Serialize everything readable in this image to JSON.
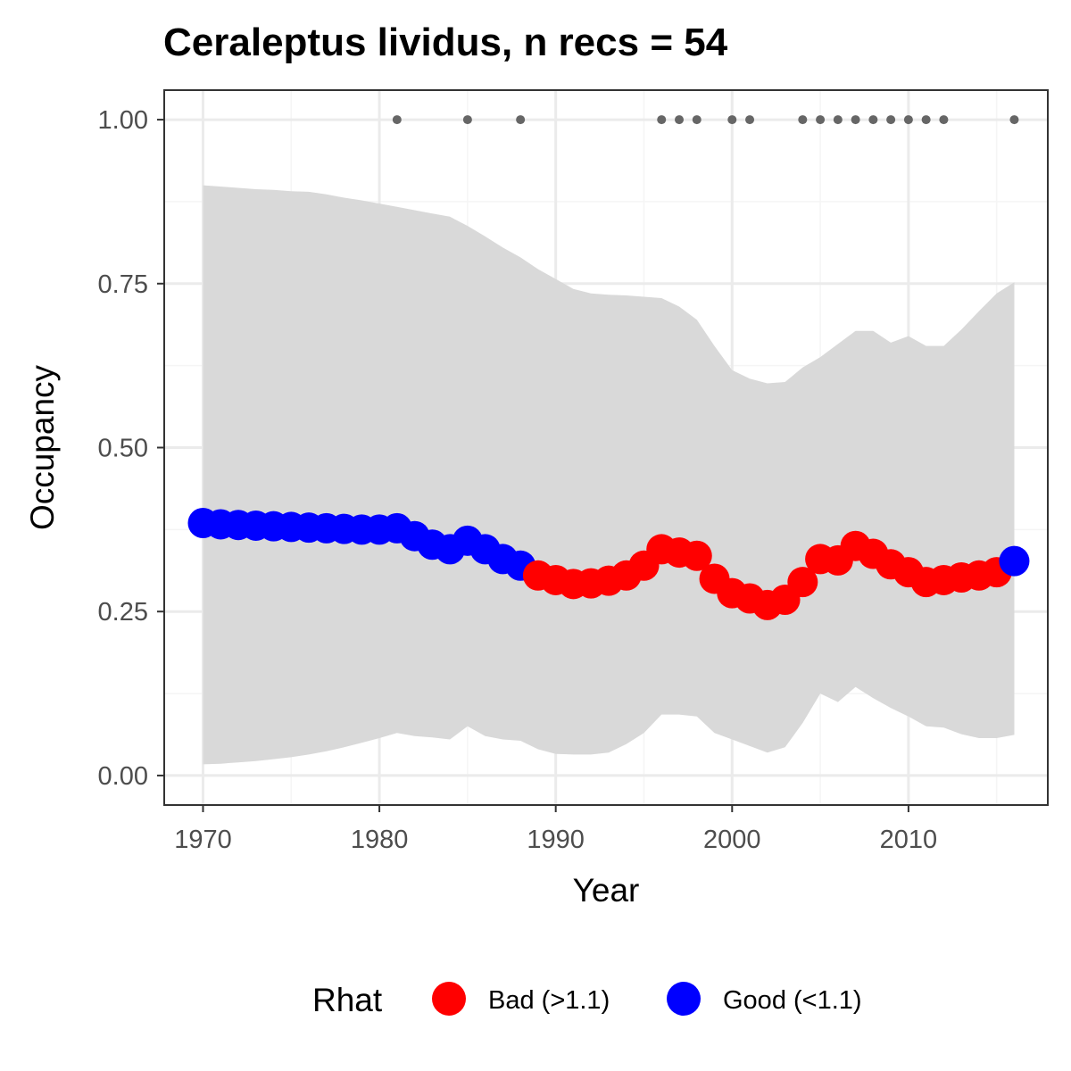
{
  "chart_data": {
    "type": "line",
    "title": "Ceraleptus lividus, n recs = 54",
    "xlabel": "Year",
    "ylabel": "Occupancy",
    "xlim": [
      1967.8,
      2017.9
    ],
    "ylim": [
      -0.045,
      1.045
    ],
    "x_ticks": [
      1970,
      1980,
      1990,
      2000,
      2010
    ],
    "x_tick_labels": [
      "1970",
      "1980",
      "1990",
      "2000",
      "2010"
    ],
    "y_ticks": [
      0,
      0.25,
      0.5,
      0.75,
      1.0
    ],
    "y_tick_labels": [
      "0.00",
      "0.25",
      "0.50",
      "0.75",
      "1.00"
    ],
    "grid": true,
    "years": [
      1970,
      1971,
      1972,
      1973,
      1974,
      1975,
      1976,
      1977,
      1978,
      1979,
      1980,
      1981,
      1982,
      1983,
      1984,
      1985,
      1986,
      1987,
      1988,
      1989,
      1990,
      1991,
      1992,
      1993,
      1994,
      1995,
      1996,
      1997,
      1998,
      1999,
      2000,
      2001,
      2002,
      2003,
      2004,
      2005,
      2006,
      2007,
      2008,
      2009,
      2010,
      2011,
      2012,
      2013,
      2014,
      2015,
      2016
    ],
    "occupancy": [
      0.385,
      0.383,
      0.382,
      0.381,
      0.38,
      0.379,
      0.378,
      0.377,
      0.376,
      0.375,
      0.375,
      0.377,
      0.365,
      0.352,
      0.345,
      0.358,
      0.345,
      0.33,
      0.32,
      0.305,
      0.298,
      0.292,
      0.293,
      0.297,
      0.305,
      0.32,
      0.345,
      0.34,
      0.335,
      0.3,
      0.278,
      0.27,
      0.26,
      0.268,
      0.295,
      0.33,
      0.328,
      0.35,
      0.338,
      0.322,
      0.31,
      0.295,
      0.298,
      0.302,
      0.305,
      0.31,
      0.327
    ],
    "rhat": [
      "Good",
      "Good",
      "Good",
      "Good",
      "Good",
      "Good",
      "Good",
      "Good",
      "Good",
      "Good",
      "Good",
      "Good",
      "Good",
      "Good",
      "Good",
      "Good",
      "Good",
      "Good",
      "Good",
      "Bad",
      "Bad",
      "Bad",
      "Bad",
      "Bad",
      "Bad",
      "Bad",
      "Bad",
      "Bad",
      "Bad",
      "Bad",
      "Bad",
      "Bad",
      "Bad",
      "Bad",
      "Bad",
      "Bad",
      "Bad",
      "Bad",
      "Bad",
      "Bad",
      "Bad",
      "Bad",
      "Bad",
      "Bad",
      "Bad",
      "Bad",
      "Good"
    ],
    "lower": [
      0.017,
      0.018,
      0.02,
      0.022,
      0.025,
      0.028,
      0.032,
      0.037,
      0.043,
      0.05,
      0.057,
      0.065,
      0.06,
      0.058,
      0.055,
      0.075,
      0.06,
      0.055,
      0.053,
      0.04,
      0.033,
      0.032,
      0.032,
      0.035,
      0.048,
      0.065,
      0.093,
      0.093,
      0.09,
      0.065,
      0.055,
      0.045,
      0.035,
      0.043,
      0.08,
      0.125,
      0.112,
      0.135,
      0.118,
      0.103,
      0.09,
      0.075,
      0.073,
      0.063,
      0.057,
      0.057,
      0.062
    ],
    "upper": [
      0.9,
      0.898,
      0.896,
      0.894,
      0.893,
      0.891,
      0.89,
      0.886,
      0.881,
      0.877,
      0.872,
      0.867,
      0.862,
      0.857,
      0.852,
      0.838,
      0.822,
      0.805,
      0.79,
      0.772,
      0.757,
      0.742,
      0.735,
      0.733,
      0.732,
      0.73,
      0.728,
      0.715,
      0.695,
      0.655,
      0.618,
      0.605,
      0.598,
      0.6,
      0.622,
      0.638,
      0.658,
      0.678,
      0.678,
      0.66,
      0.67,
      0.655,
      0.655,
      0.68,
      0.708,
      0.735,
      0.752
    ],
    "detection_years": [
      1981,
      1985,
      1988,
      1996,
      1997,
      1998,
      2000,
      2001,
      2004,
      2005,
      2006,
      2007,
      2008,
      2009,
      2010,
      2011,
      2012,
      2016
    ],
    "detection_value": 1.0,
    "legend": {
      "title": "Rhat",
      "position": "bottom",
      "entries": [
        {
          "key": "Bad",
          "label": "Bad (>1.1)",
          "color": "#ff0000"
        },
        {
          "key": "Good",
          "label": "Good (<1.1)",
          "color": "#0000ff"
        }
      ]
    },
    "colors": {
      "ribbon": "#d9d9d9",
      "detection_points": "#666666",
      "grid_major": "#ebebeb",
      "grid_minor": "#f5f5f5",
      "panel_border": "#333333"
    }
  }
}
